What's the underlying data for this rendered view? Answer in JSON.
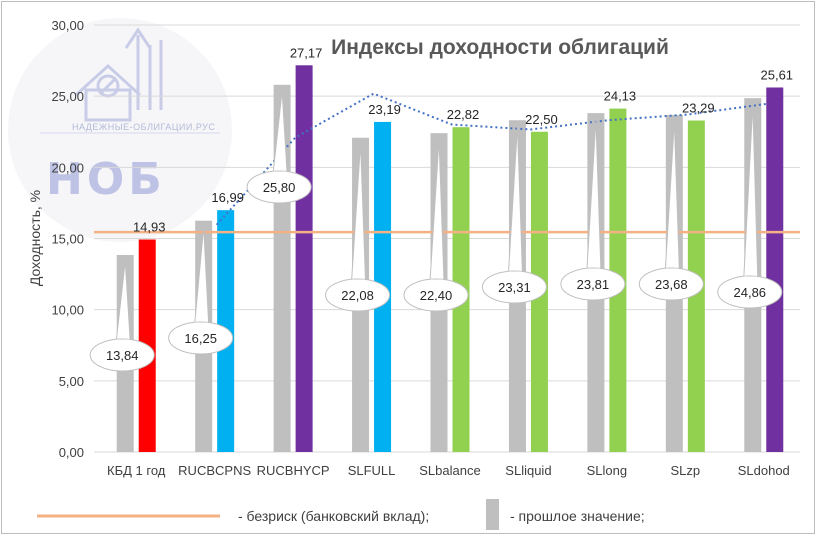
{
  "chart_data": {
    "type": "bar",
    "title": "Индексы доходности облигаций",
    "ylabel": "Доходность, %",
    "ylim": [
      0,
      30
    ],
    "yticks": [
      "0,00",
      "5,00",
      "10,00",
      "15,00",
      "20,00",
      "25,00",
      "30,00"
    ],
    "grid": true,
    "categories": [
      "КБД 1 год",
      "RUCBCPNS",
      "RUCBHYCP",
      "SLFULL",
      "SLbalance",
      "SLliquid",
      "SLlong",
      "SLzp",
      "SLdohod"
    ],
    "series": [
      {
        "name": "прошлое значение",
        "color": "#bfbfbf",
        "values": [
          13.84,
          16.25,
          25.8,
          22.08,
          22.4,
          23.31,
          23.81,
          23.68,
          24.86
        ],
        "labels": [
          "13,84",
          "16,25",
          "25,80",
          "22,08",
          "22,40",
          "23,31",
          "23,81",
          "23,68",
          "24,86"
        ]
      },
      {
        "values": [
          14.93,
          16.99,
          27.17,
          23.19,
          22.82,
          22.5,
          24.13,
          23.29,
          25.61
        ],
        "labels": [
          "14,93",
          "16,99",
          "27,17",
          "23,19",
          "22,82",
          "22,50",
          "24,13",
          "23,29",
          "25,61"
        ],
        "colors": [
          "#ff0000",
          "#00b0f0",
          "#7030a0",
          "#00b0f0",
          "#92d050",
          "#92d050",
          "#92d050",
          "#92d050",
          "#7030a0"
        ]
      }
    ],
    "reference_line": {
      "name": "безриск (банковский вклад)",
      "value": 15.45,
      "color": "#f4b183"
    },
    "trendline": {
      "type": "moving-average",
      "color": "#4472c4",
      "style": "dotted"
    },
    "legend": {
      "position": "bottom",
      "items": [
        "- безриск (банковский вклад);",
        "- прошлое значение;"
      ]
    }
  },
  "watermark": {
    "site": "НАДЕЖНЫЕ-ОБЛИГАЦИИ.РУС",
    "logo_text": "НОБ"
  }
}
